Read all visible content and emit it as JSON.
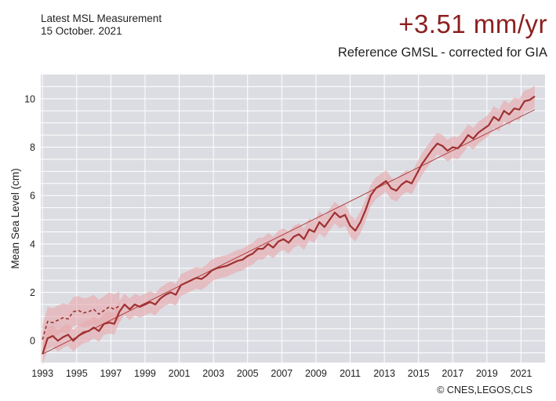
{
  "header": {
    "measurement_label": "Latest MSL Measurement",
    "measurement_date": "15 October. 2021",
    "rate": "+3.51 mm/yr",
    "reference": "Reference GMSL - corrected for GIA"
  },
  "credit": "© CNES,LEGOS,CLS",
  "colors": {
    "main_line": "#a03030",
    "band": "#e8a8ac",
    "trend": "#b04040",
    "background": "#dcdde3",
    "grid": "#ffffff",
    "accent_text": "#8b2020"
  },
  "chart_data": {
    "type": "line",
    "title": "",
    "xlabel": "",
    "ylabel": "Mean Sea Level (cm)",
    "xlim": [
      1992.9,
      2022.4
    ],
    "ylim": [
      -0.9,
      11.0
    ],
    "xticks": [
      1993,
      1995,
      1997,
      1999,
      2001,
      2003,
      2005,
      2007,
      2009,
      2011,
      2013,
      2015,
      2017,
      2019,
      2021
    ],
    "yticks": [
      0,
      2,
      4,
      6,
      8,
      10
    ],
    "grid": true,
    "series": [
      {
        "style": "solid",
        "x": [
          1993.0,
          1993.3,
          1993.6,
          1993.9,
          1994.2,
          1994.5,
          1994.8,
          1995.1,
          1995.4,
          1995.7,
          1996.0,
          1996.3,
          1996.6,
          1996.9,
          1997.2,
          1997.5,
          1997.8,
          1998.1,
          1998.4,
          1998.7,
          1999.0,
          1999.3,
          1999.6,
          1999.9,
          2000.2,
          2000.5,
          2000.8,
          2001.1,
          2001.4,
          2001.7,
          2002.0,
          2002.3,
          2002.6,
          2002.9,
          2003.2,
          2003.5,
          2003.8,
          2004.1,
          2004.4,
          2004.7,
          2005.0,
          2005.3,
          2005.6,
          2005.9,
          2006.2,
          2006.5,
          2006.8,
          2007.1,
          2007.4,
          2007.7,
          2008.0,
          2008.3,
          2008.6,
          2008.9,
          2009.2,
          2009.5,
          2009.8,
          2010.1,
          2010.4,
          2010.7,
          2011.0,
          2011.3,
          2011.6,
          2011.9,
          2012.2,
          2012.5,
          2012.8,
          2013.1,
          2013.4,
          2013.7,
          2014.0,
          2014.3,
          2014.6,
          2014.9,
          2015.2,
          2015.5,
          2015.8,
          2016.1,
          2016.4,
          2016.7,
          2017.0,
          2017.3,
          2017.6,
          2017.9,
          2018.2,
          2018.5,
          2018.8,
          2019.1,
          2019.4,
          2019.7,
          2020.0,
          2020.3,
          2020.6,
          2020.9,
          2021.2,
          2021.5,
          2021.8
        ],
        "values": [
          -0.55,
          0.1,
          0.2,
          0.0,
          0.15,
          0.25,
          0.0,
          0.2,
          0.35,
          0.4,
          0.55,
          0.4,
          0.7,
          0.75,
          0.7,
          1.2,
          1.5,
          1.3,
          1.5,
          1.4,
          1.5,
          1.6,
          1.5,
          1.75,
          1.9,
          2.0,
          1.9,
          2.3,
          2.4,
          2.5,
          2.6,
          2.55,
          2.7,
          2.9,
          3.0,
          3.05,
          3.1,
          3.2,
          3.3,
          3.35,
          3.5,
          3.6,
          3.8,
          3.8,
          4.0,
          3.85,
          4.1,
          4.2,
          4.05,
          4.3,
          4.4,
          4.2,
          4.6,
          4.5,
          4.9,
          4.7,
          5.0,
          5.3,
          5.1,
          5.2,
          4.75,
          4.55,
          4.9,
          5.4,
          6.0,
          6.3,
          6.45,
          6.6,
          6.3,
          6.2,
          6.45,
          6.6,
          6.5,
          6.9,
          7.3,
          7.6,
          7.9,
          8.15,
          8.05,
          7.85,
          8.0,
          7.95,
          8.2,
          8.5,
          8.35,
          8.6,
          8.75,
          8.9,
          9.25,
          9.1,
          9.5,
          9.35,
          9.6,
          9.55,
          9.9,
          9.95,
          10.1
        ]
      },
      {
        "style": "dashed",
        "x": [
          1993.0,
          1993.3,
          1993.6,
          1993.9,
          1994.2,
          1994.5,
          1994.8,
          1995.1,
          1995.4,
          1995.7,
          1996.0,
          1996.3,
          1996.6,
          1996.9,
          1997.2,
          1997.5
        ],
        "values": [
          0.05,
          0.8,
          0.75,
          0.85,
          0.95,
          0.9,
          1.2,
          1.25,
          1.15,
          1.2,
          1.3,
          1.1,
          1.25,
          1.4,
          1.3,
          1.45
        ]
      }
    ],
    "trend": {
      "x": [
        1993.0,
        2021.8
      ],
      "values": [
        -0.55,
        9.55
      ]
    }
  }
}
